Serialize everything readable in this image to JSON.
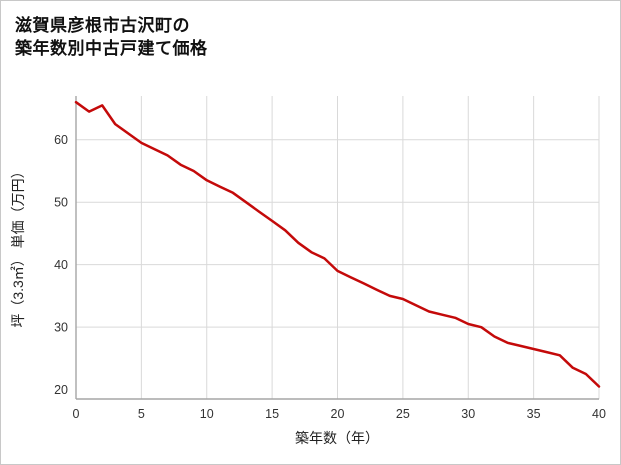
{
  "page": {
    "title_line1": "滋賀県彦根市古沢町の",
    "title_line2": "築年数別中古戸建て価格"
  },
  "chart_data": {
    "type": "line",
    "title": "滋賀県彦根市古沢町の築年数別中古戸建て価格",
    "xlabel": "築年数（年）",
    "ylabel": "坪（3.3㎡） 単価（万円）",
    "x": [
      0,
      1,
      2,
      3,
      4,
      5,
      6,
      7,
      8,
      9,
      10,
      11,
      12,
      13,
      14,
      15,
      16,
      17,
      18,
      19,
      20,
      21,
      22,
      23,
      24,
      25,
      26,
      27,
      28,
      29,
      30,
      31,
      32,
      33,
      34,
      35,
      36,
      37,
      38,
      39,
      40
    ],
    "values": [
      66,
      64.5,
      65.5,
      62.5,
      61,
      59.5,
      58.5,
      57.5,
      56,
      55,
      53.5,
      52.5,
      51.5,
      50,
      48.5,
      47,
      45.5,
      43.5,
      42,
      41,
      39,
      38,
      37,
      36,
      35,
      34.5,
      33.5,
      32.5,
      32,
      31.5,
      30.5,
      30,
      28.5,
      27.5,
      27,
      26.5,
      26,
      25.5,
      23.5,
      22.5,
      20.5
    ],
    "xlim": [
      0,
      40
    ],
    "ylim": [
      18.5,
      67
    ],
    "xticks": [
      0,
      5,
      10,
      15,
      20,
      25,
      30,
      35,
      40
    ],
    "yticks": [
      20,
      30,
      40,
      50,
      60
    ],
    "grid": true,
    "legend": "none",
    "line_color": "#c40a0a",
    "grid_color": "#d9d9d9",
    "axis_color": "#a6a6a6",
    "tick_color": "#333333"
  }
}
